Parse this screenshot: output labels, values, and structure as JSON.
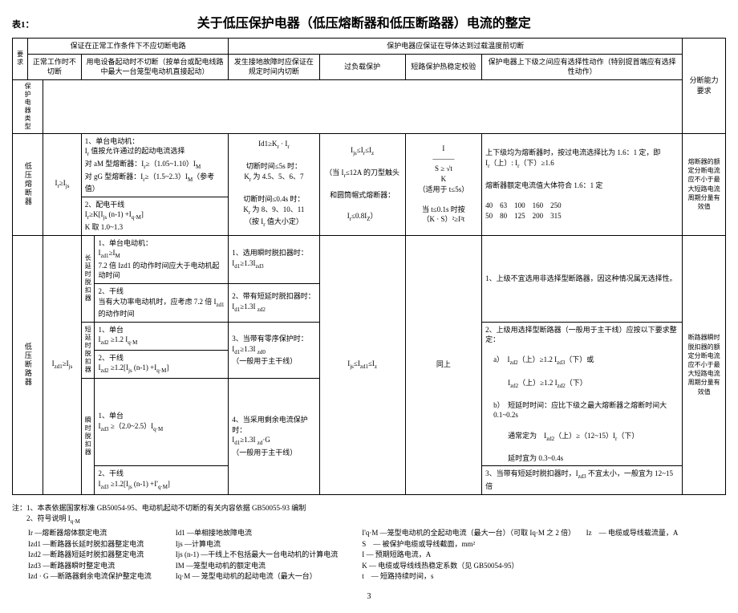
{
  "header": {
    "table_label": "表1：",
    "title": "关于低压保护电器（低压熔断器和低压断路器）电流的整定"
  },
  "col_headers": {
    "req": "要求",
    "protect_type": "保护电器类型",
    "normal_no_trip": "保证在正常工作条件下不应切断电路",
    "normal_work": "正常工作时不切断",
    "equip_start": "用电设备起动时不切断（按单台或配电线路中最大一台笼型电动机直接起动）",
    "guarantee_before_overtemp": "保护电器应保证在导体达到过载温度前切断",
    "ground_fault": "发生接地故障时应保证在规定时间内切断",
    "overload": "过负载保护",
    "short_circuit": "短路保护热稳定校验",
    "upper_lower": "保护电器上下级之间应有选择性动作（特别提首端应有选择性动作）",
    "breaking": "分断能力要求"
  },
  "fuse": {
    "type_label": "低压熔断器",
    "col1": "I<sub>r</sub>≥I<sub>js</sub>",
    "col2_1": "1、单台电动机：\nI<sub>r</sub> 值按允许通过的起动电流选择\n对 aM 型熔断器：I<sub>r</sub>≥（1.05~1.10）I<sub>M</sub>\n对 gG 型熔断器：I<sub>r</sub>≥（1.5~2.3）I<sub>M</sub>（参考值）",
    "col2_2": "2、配电干线\nI<sub>r</sub>≥K[I<sub>js</sub> (n-1) +I<sub>q·M</sub>]\nK 取 1.0~1.3",
    "col3": "Id1≥K<sub>r</sub> · I<sub>r</sub>\n\n切断时间≤5s 时：\nK<sub>r</sub> 为 4.5、5、6、7\n\n切断时间≤0.4s 时：\nK<sub>r</sub> 为 8、9、10、11\n（按 I<sub>r</sub> 值大小定）",
    "col4": "I<sub>js</sub>≤I<sub>r</sub>≤I<sub>z</sub>\n\n（当 I<sub>r</sub>≤12A 的刀型触头\n\n和圆筒帽式熔断器：\n\nI<sub>r</sub>≤0.8I<sub>Z</sub>）",
    "col5": "I\n———\nS ≥ √t\nK\n（适用于 t≤5s）\n\n当 t≤0.1s 时按\n（K · S）²≥I²t",
    "col6": "上下级均为熔断器时，按过电流选择比为 1.6：1 定，即\nI<sub>r</sub>（上）: I<sub>r</sub>（下）≥1.6\n\n熔断器额定电流值大体符合 1.6：1 定\n\n40　63　100　160　250\n50　80　125　200　315",
    "col7": "熔断器的额定分断电流应不小于最大短路电流周期分量有效值"
  },
  "breaker": {
    "type_label": "低压断路器",
    "col1": "I<sub>zd1</sub>≥I<sub>js</sub>",
    "group1_label": "长延时脱扣器",
    "group1_1": "1、单台电动机：\nI<sub>zd1</sub>≥I<sub>M</sub>\n7.2 倍 Izd1 的动作时间应大于电动机起动时间",
    "group1_2": "2、干线\n当有大功率电动机时，应考虑 7.2 倍 I<sub>zd1</sub>的动作时间",
    "group2_label": "短延时脱扣器",
    "group2_1": "1、单台\nI<sub>zd2</sub> ≥1.2 I<sub>q·M</sub>",
    "group2_2": "2、干线\nI<sub>zd2</sub> ≥1.2[I<sub>js</sub> (n-1) +I<sub>q·M</sub>]",
    "group3_label": "瞬时脱扣器",
    "group3_1": "1、单台\nI<sub>zd3</sub> ≥（2.0~2.5）I<sub>q·M</sub>",
    "group3_2": "2、干线\nI<sub>zd3</sub> ≥1.2[I<sub>js</sub> (n-1) +I'<sub>q·M</sub>]",
    "col3_1": "1、选用瞬时脱扣器时：\nI<sub>d1</sub>≥1.3I<sub>zd3</sub>",
    "col3_2": "2、带有短延时脱扣器时：\nI<sub>d1</sub>≥1.3I <sub>zd2</sub>",
    "col3_3": "3、当带有零序保护时：\nI<sub>d1</sub>≥1.3I <sub>zd0</sub>\n（一般用于主干线）",
    "col3_4": "4、当采用剩余电流保护时：\nI<sub>d1</sub>≥1.3I <sub>zd</sub>·G\n（一般用于主干线）",
    "col4": "I<sub>js</sub>≤I<sub>zd1</sub>≤I<sub>z</sub>",
    "col5": "同上",
    "col6_1": "1、上级不宜选用非选择型断路器，因这种情况属无选择性。",
    "col6_2": "2、上级用选择型断路器（一般用于主干线）应按以下要求整定：",
    "col6_a": "a）　I<sub>zd2</sub>（上）≥1.2 I<sub>zd3</sub>（下）或\n\n　　I<sub>zd2</sub>（上）≥1.2 I<sub>zd2</sub>（下）",
    "col6_b": "b）　短延时时间：应比下级之最大熔断器之熔断时间大 0.1~0.2s\n\n　　通常定为　I<sub>zd2</sub>（上）≥（12~15）I<sub>r</sub>（下）\n\n　　延时宜为 0.3~0.4s",
    "col6_3": "3、当带有短延时脱扣器时，I<sub>zd3</sub> 不宜太小，一般宜为 12~15 倍",
    "col7": "断路器瞬时脱扣器的额定分断电流应不小于最大短路电流周期分量有效值"
  },
  "notes": {
    "line1": "注：1、本表依据国家标准 GB50054-95、电动机起动不切断的有关内容依据 GB50055-93 编制",
    "line2": "　　2、符号说明 I<sub>q·M</sub>",
    "col1": [
      "Ir —熔断器熔体额定电流",
      "Izd1 —断路器长延时脱扣器整定电流",
      "Izd2 —断路器短延时脱扣器整定电流",
      "Izd3 —断路器瞬时整定电流",
      "Izd · G —断路器剩余电流保护整定电流"
    ],
    "col2": [
      "Id1 —单相接地故障电流",
      "Ijs —计算电流",
      "Ijs (n-1) —干线上不包括最大一台电动机的计算电流",
      "IM —笼型电动机的额定电流",
      "Iq·M — 笼型电动机的起动电流（最大一台）"
    ],
    "col3": [
      "I'q·M —笼型电动机的全起动电流（最大一台）（可取 Iq·M 之 2 倍）　　Iz　— 电缆或导线载流量，A",
      "S　— 被保护电缆或导线截面，mm²",
      "I — 预期短路电流，A",
      "K — 电缆或导线线热稳定系数（见 GB50054-95）",
      "t　— 短路持续时间，s"
    ]
  },
  "page": "3"
}
